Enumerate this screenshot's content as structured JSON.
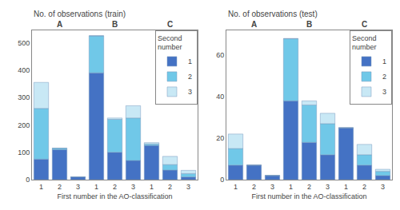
{
  "chart_data": [
    {
      "type": "bar",
      "stacked": true,
      "title": "No. of observations (train)",
      "xlabel": "First number in the AO-classification",
      "categories": [
        "1",
        "2",
        "3",
        "1",
        "2",
        "3",
        "1",
        "2",
        "3"
      ],
      "annotations": [
        {
          "text": "A",
          "x": 1
        },
        {
          "text": "B",
          "x": 4
        },
        {
          "text": "C",
          "x": 7
        }
      ],
      "series": [
        {
          "name": "1",
          "color": "#4472c4",
          "values": [
            75,
            110,
            10,
            390,
            100,
            70,
            125,
            35,
            10
          ]
        },
        {
          "name": "2",
          "color": "#70c8e8",
          "values": [
            185,
            5,
            0,
            135,
            120,
            155,
            5,
            20,
            12
          ]
        },
        {
          "name": "3",
          "color": "#c8e8f5",
          "values": [
            95,
            0,
            0,
            0,
            5,
            45,
            5,
            30,
            12
          ]
        }
      ],
      "legend_title": "Second\nnumber",
      "legend": "upper right",
      "ylim": [
        0,
        545
      ],
      "yticks": [
        0,
        100,
        200,
        300,
        400,
        500
      ],
      "grid": false
    },
    {
      "type": "bar",
      "stacked": true,
      "title": "No. of observations (test)",
      "xlabel": "First number in the AO-classification",
      "categories": [
        "1",
        "2",
        "3",
        "1",
        "2",
        "3",
        "1",
        "2",
        "3"
      ],
      "annotations": [
        {
          "text": "A",
          "x": 1
        },
        {
          "text": "B",
          "x": 4
        },
        {
          "text": "C",
          "x": 7
        }
      ],
      "series": [
        {
          "name": "1",
          "color": "#4472c4",
          "values": [
            7,
            7,
            2,
            38,
            18,
            12,
            25,
            7,
            2
          ]
        },
        {
          "name": "2",
          "color": "#70c8e8",
          "values": [
            8,
            0,
            0,
            30,
            18,
            15,
            0,
            5,
            2
          ]
        },
        {
          "name": "3",
          "color": "#c8e8f5",
          "values": [
            7,
            0,
            0,
            0,
            2,
            5,
            0,
            5,
            1
          ]
        }
      ],
      "legend_title": "Second\nnumber",
      "legend": "upper right",
      "ylim": [
        0,
        72
      ],
      "yticks": [
        0,
        20,
        40,
        60
      ],
      "grid": false
    }
  ]
}
